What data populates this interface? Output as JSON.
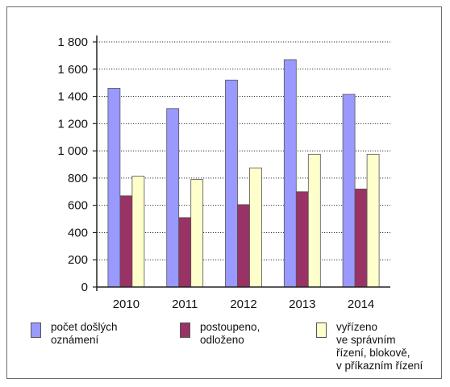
{
  "chart_data": {
    "type": "bar",
    "categories": [
      "2010",
      "2011",
      "2012",
      "2013",
      "2014"
    ],
    "series": [
      {
        "name": "počet došlých\noznámení",
        "values": [
          1460,
          1310,
          1520,
          1670,
          1415
        ],
        "color": "#9999ff"
      },
      {
        "name": "postoupeno,\nodloženo",
        "values": [
          670,
          510,
          605,
          700,
          720
        ],
        "color": "#993366"
      },
      {
        "name": "vyřízeno\nve správním\nřízení, blokově,\nv příkazním řízení",
        "values": [
          815,
          790,
          875,
          975,
          975
        ],
        "color": "#ffffcc"
      }
    ],
    "y_ticks": [
      "0",
      "200",
      "400",
      "600",
      "800",
      "1 000",
      "1 200",
      "1 400",
      "1 600",
      "1 800"
    ],
    "ylim": [
      0,
      1800
    ],
    "grid": "horizontal dotted",
    "legend_position": "bottom",
    "title": "",
    "xlabel": "",
    "ylabel": ""
  }
}
